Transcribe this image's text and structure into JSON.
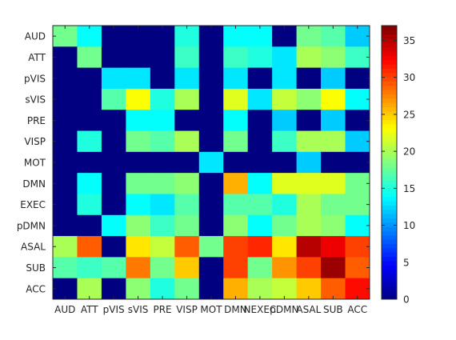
{
  "chart_data": {
    "type": "heatmap",
    "title": "",
    "xlabel": "",
    "ylabel": "",
    "x_categories": [
      "AUD",
      "ATT",
      "pVIS",
      "sVIS",
      "PRE",
      "VISP",
      "MOT",
      "DMN",
      "NEXEC",
      "pDMN",
      "ASAL",
      "SUB",
      "ACC"
    ],
    "x_tick_labels": [
      "AUD",
      "ATT",
      "pVIS",
      "sVIS",
      "PRE",
      "VISP",
      "MOT",
      "DMN",
      "NEXEC",
      "pDMN",
      "ASAL",
      "SUB",
      "ACC"
    ],
    "y_categories": [
      "AUD",
      "ATT",
      "pVIS",
      "sVIS",
      "PRE",
      "VISP",
      "MOT",
      "DMN",
      "EXEC",
      "pDMN",
      "ASAL",
      "SUB",
      "ACC"
    ],
    "values": [
      [
        18,
        14,
        0,
        0,
        0,
        15,
        0,
        14,
        14,
        0,
        18,
        17,
        12
      ],
      [
        0,
        18,
        0,
        0,
        0,
        16,
        0,
        16,
        15,
        13,
        20,
        19,
        16
      ],
      [
        0,
        0,
        13,
        13,
        0,
        13,
        0,
        13,
        0,
        13,
        0,
        12,
        0
      ],
      [
        0,
        0,
        17,
        23,
        15,
        20,
        0,
        22,
        13,
        21,
        19,
        23,
        14
      ],
      [
        0,
        0,
        0,
        14,
        14,
        0,
        0,
        14,
        0,
        12,
        0,
        12,
        0
      ],
      [
        0,
        15,
        0,
        18,
        17,
        20,
        0,
        18,
        0,
        16,
        20,
        20,
        12
      ],
      [
        0,
        0,
        0,
        0,
        0,
        0,
        13,
        0,
        0,
        0,
        12,
        0,
        0
      ],
      [
        0,
        14,
        0,
        18,
        18,
        19,
        0,
        26,
        14,
        22,
        22,
        22,
        18
      ],
      [
        0,
        15,
        0,
        14,
        13,
        17,
        0,
        17,
        17,
        15,
        20,
        18,
        18
      ],
      [
        0,
        0,
        14,
        19,
        16,
        18,
        0,
        19,
        14,
        18,
        20,
        19,
        14
      ],
      [
        20,
        29,
        0,
        24,
        21,
        29,
        18,
        30,
        31,
        24,
        35,
        33,
        30
      ],
      [
        17,
        16,
        17,
        28,
        18,
        25,
        0,
        30,
        18,
        27,
        30,
        36,
        29
      ],
      [
        0,
        20,
        0,
        19,
        15,
        18,
        0,
        26,
        20,
        21,
        25,
        29,
        32
      ]
    ],
    "colorbar": {
      "min": 0,
      "max": 37,
      "ticks": [
        0,
        5,
        10,
        15,
        20,
        25,
        30,
        35
      ],
      "tick_labels": [
        "0",
        "5",
        "10",
        "15",
        "20",
        "25",
        "30",
        "35"
      ],
      "colormap": "jet"
    },
    "grid": false
  }
}
